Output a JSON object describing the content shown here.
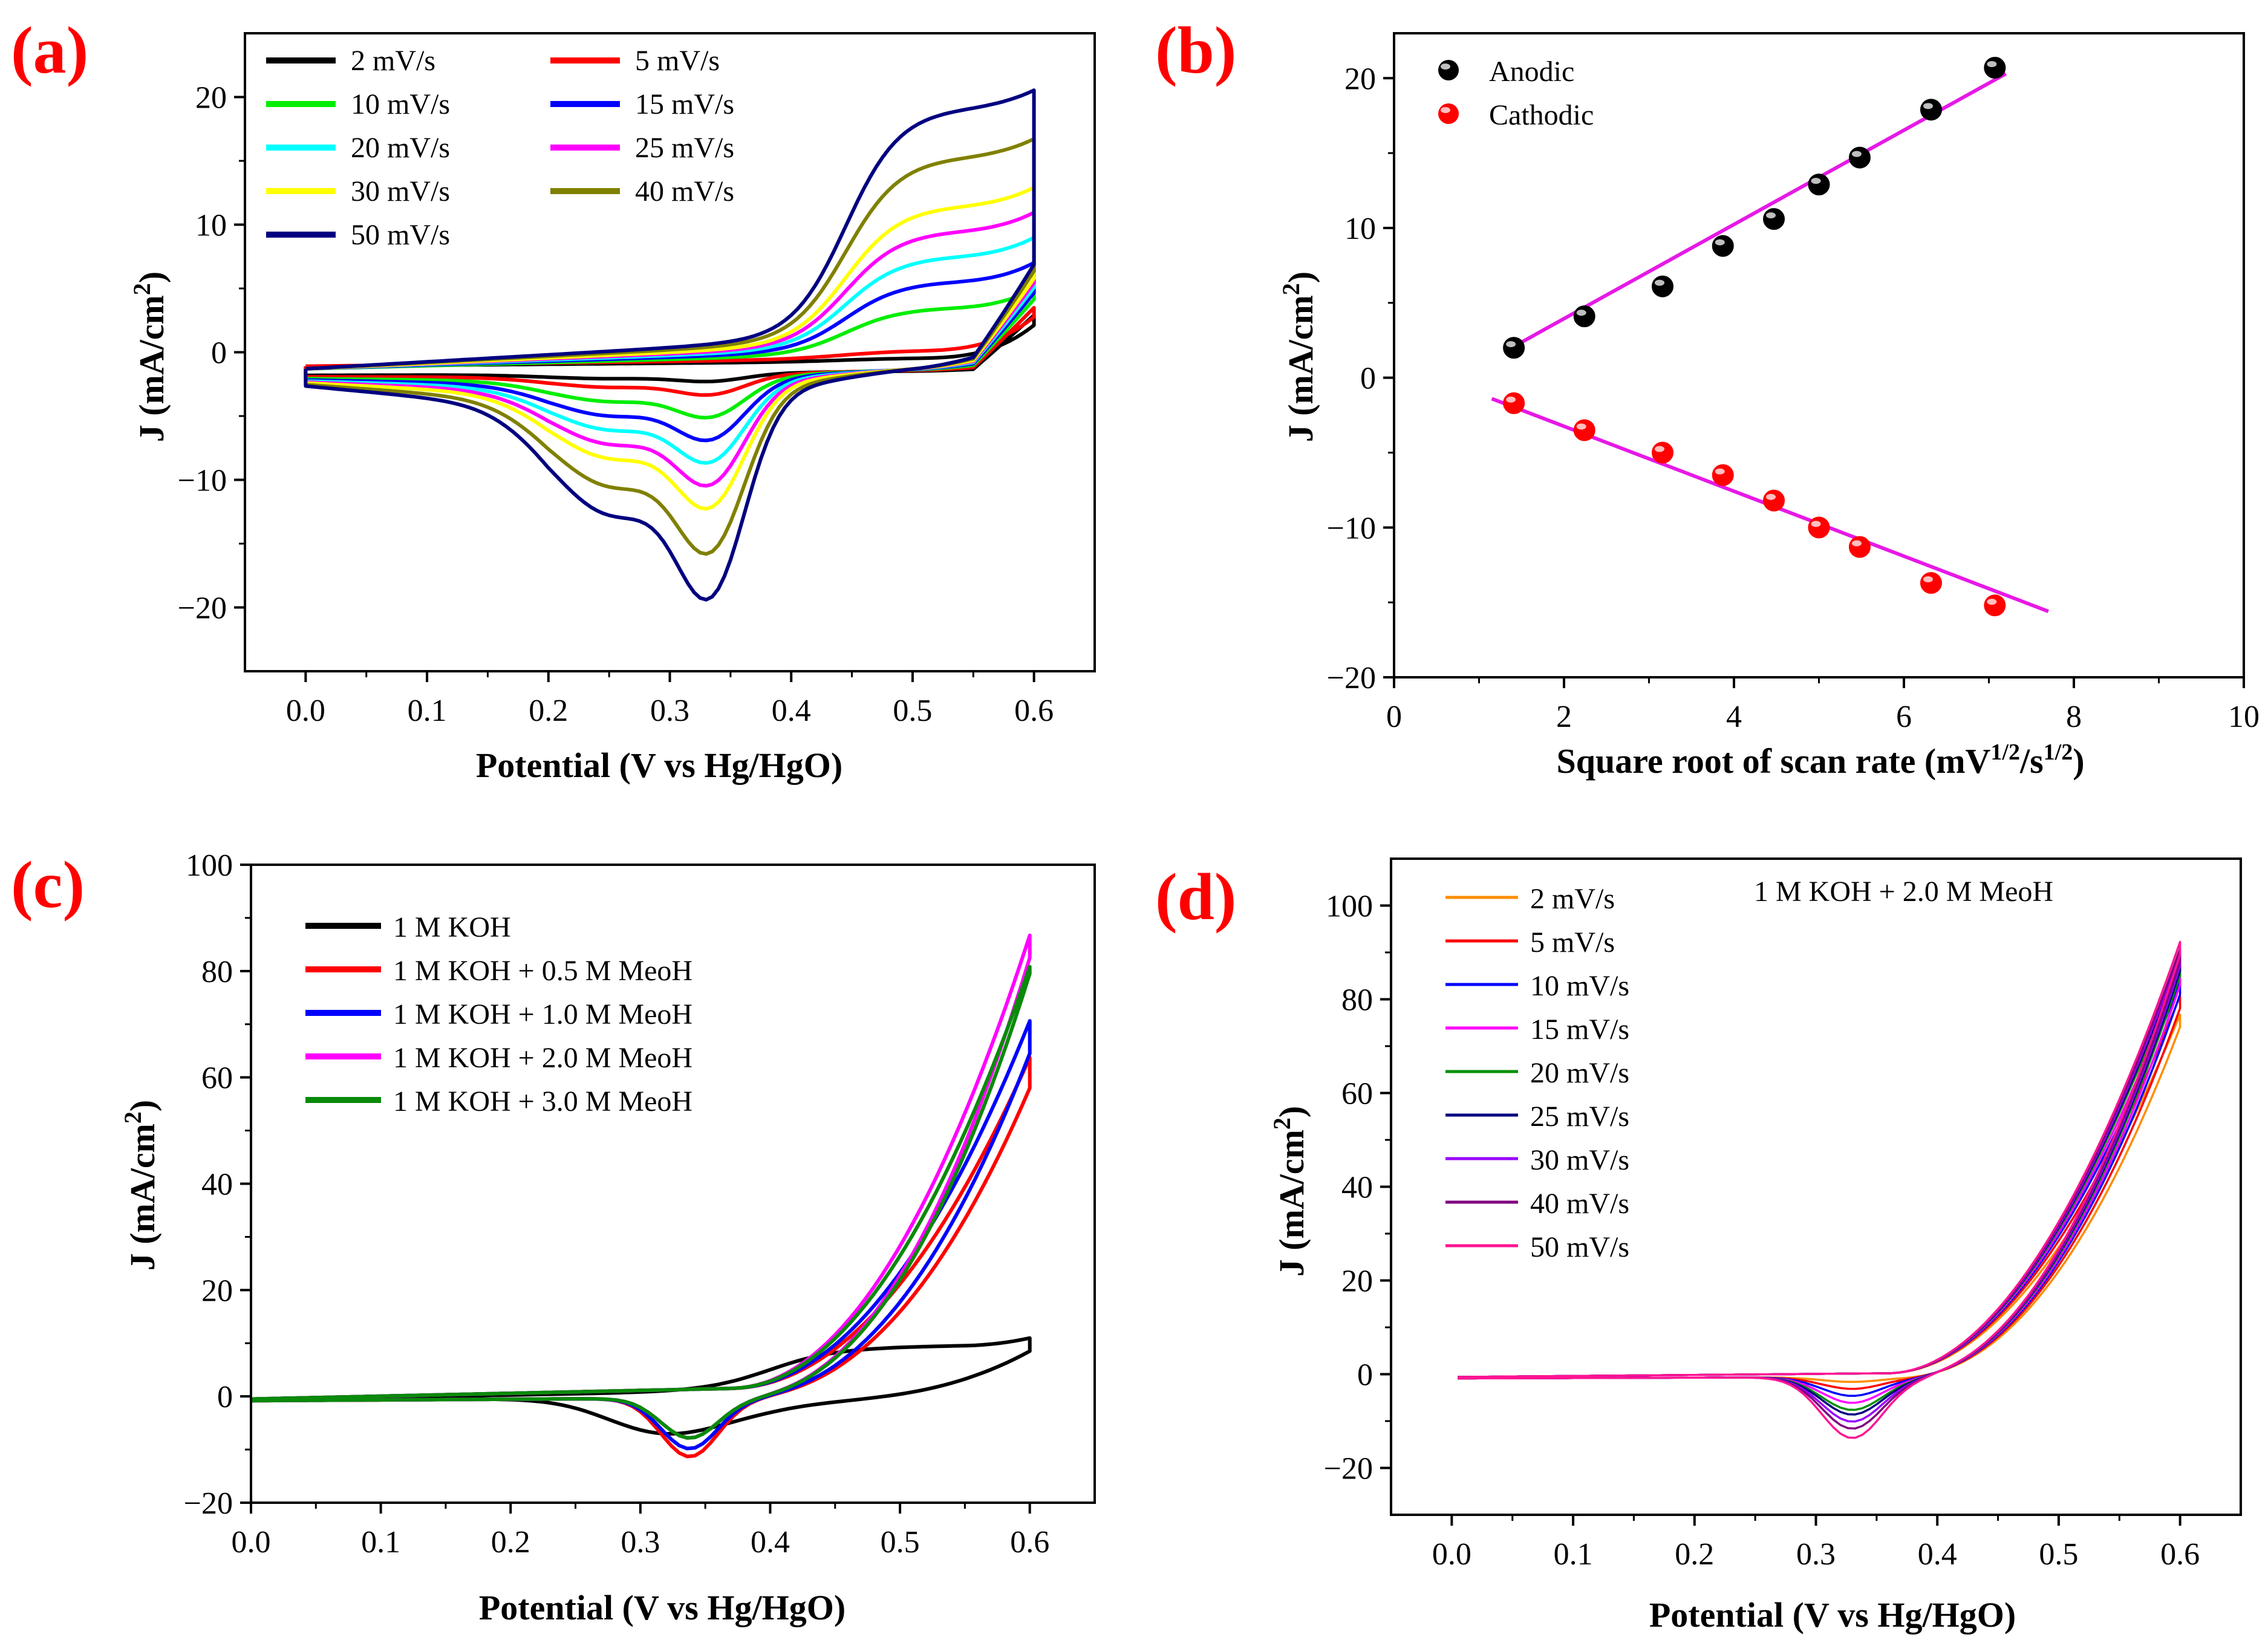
{
  "chart_data": [
    {
      "id": "a",
      "panel_label": "(a)",
      "type": "line",
      "xlabel": "Potential (V vs Hg/HgO)",
      "ylabel_main": "J (mA/cm",
      "ylabel_sup": "2",
      "ylabel_close": ")",
      "xlim": [
        -0.05,
        0.65
      ],
      "ylim": [
        -25,
        25
      ],
      "xticks": [
        0.0,
        0.1,
        0.2,
        0.3,
        0.4,
        0.5,
        0.6
      ],
      "xtick_labels": [
        "0.0",
        "0.1",
        "0.2",
        "0.3",
        "0.4",
        "0.5",
        "0.6"
      ],
      "yticks": [
        -20,
        -10,
        0,
        10,
        20
      ],
      "ytick_labels": [
        "−20",
        "−10",
        "0",
        "10",
        "20"
      ],
      "legend_columns": 2,
      "series": [
        {
          "name": "2 mV/s",
          "color": "#000000",
          "k": 0.2
        },
        {
          "name": "5 mV/s",
          "color": "#ff0000",
          "k": 0.316
        },
        {
          "name": "10 mV/s",
          "color": "#00ee00",
          "k": 0.447
        },
        {
          "name": "15 mV/s",
          "color": "#0000ff",
          "k": 0.548
        },
        {
          "name": "20 mV/s",
          "color": "#00ffff",
          "k": 0.632
        },
        {
          "name": "25 mV/s",
          "color": "#ff00ff",
          "k": 0.707
        },
        {
          "name": "30 mV/s",
          "color": "#ffff00",
          "k": 0.775
        },
        {
          "name": "40 mV/s",
          "color": "#808000",
          "k": 0.894
        },
        {
          "name": "50 mV/s",
          "color": "#000080",
          "k": 1.0
        }
      ]
    },
    {
      "id": "b",
      "panel_label": "(b)",
      "type": "scatter",
      "xlabel_main": "Square root of scan rate (mV",
      "xlabel_sup1": "1/2",
      "xlabel_mid": "/s",
      "xlabel_sup2": "1/2",
      "xlabel_close": ")",
      "ylabel_main": "J (mA/cm",
      "ylabel_sup": "2",
      "ylabel_close": ")",
      "xlim": [
        0,
        10
      ],
      "ylim": [
        -20,
        23
      ],
      "xticks": [
        0,
        2,
        4,
        6,
        8,
        10
      ],
      "xtick_labels": [
        "0",
        "2",
        "4",
        "6",
        "8",
        "10"
      ],
      "yticks": [
        -20,
        -10,
        0,
        10,
        20
      ],
      "ytick_labels": [
        "−20",
        "−10",
        "0",
        "10",
        "20"
      ],
      "fit_color": "#e619e6",
      "series": [
        {
          "name": "Anodic",
          "color": "#000000",
          "x": [
            1.41,
            2.24,
            3.16,
            3.87,
            4.47,
            5.0,
            5.48,
            6.32,
            7.07
          ],
          "y": [
            2.0,
            4.1,
            6.1,
            8.8,
            10.6,
            12.9,
            14.7,
            17.9,
            20.7
          ],
          "fit": {
            "x": [
              1.35,
              7.2
            ],
            "y": [
              1.9,
              20.3
            ]
          }
        },
        {
          "name": "Cathodic",
          "color": "#ff0000",
          "x": [
            1.41,
            2.24,
            3.16,
            3.87,
            4.47,
            5.0,
            5.48,
            6.32,
            7.07
          ],
          "y": [
            -1.7,
            -3.5,
            -5.0,
            -6.5,
            -8.2,
            -10.0,
            -11.3,
            -13.7,
            -15.2
          ],
          "fit": {
            "x": [
              1.15,
              7.7
            ],
            "y": [
              -1.4,
              -15.6
            ]
          }
        }
      ]
    },
    {
      "id": "c",
      "panel_label": "(c)",
      "type": "line",
      "xlabel": "Potential (V vs Hg/HgO)",
      "ylabel_main": "J (mA/cm",
      "ylabel_sup": "2",
      "ylabel_close": ")",
      "xlim": [
        0.0,
        0.65
      ],
      "ylim": [
        -20,
        100
      ],
      "xticks": [
        0.0,
        0.1,
        0.2,
        0.3,
        0.4,
        0.5,
        0.6
      ],
      "xtick_labels": [
        "0.0",
        "0.1",
        "0.2",
        "0.3",
        "0.4",
        "0.5",
        "0.6"
      ],
      "yticks": [
        -20,
        0,
        20,
        40,
        60,
        80,
        100
      ],
      "ytick_labels": [
        "−20",
        "0",
        "20",
        "40",
        "60",
        "80",
        "100"
      ],
      "series": [
        {
          "name": "1 M KOH",
          "color": "#000000",
          "end_value": 10.5,
          "valley": -7
        },
        {
          "name": "1 M KOH + 0.5 M MeoH",
          "color": "#ff0000",
          "end_value": 59,
          "valley": -12
        },
        {
          "name": "1 M KOH + 1.0 M MeoH",
          "color": "#0000ff",
          "end_value": 65.5,
          "valley": -10.5
        },
        {
          "name": "1 M KOH + 2.0 M MeoH",
          "color": "#ff00ff",
          "end_value": 83.5,
          "valley": -8.5
        },
        {
          "name": "1 M KOH + 3.0 M MeoH",
          "color": "#0a8a0a",
          "end_value": 80.5,
          "valley": -8.5
        }
      ]
    },
    {
      "id": "d",
      "panel_label": "(d)",
      "type": "line",
      "annotation": "1 M KOH + 2.0 M MeoH",
      "xlabel": "Potential (V vs Hg/HgO)",
      "ylabel_main": "J (mA/cm",
      "ylabel_sup": "2",
      "ylabel_close": ")",
      "xlim": [
        -0.05,
        0.65
      ],
      "ylim": [
        -30,
        110
      ],
      "xticks": [
        0.0,
        0.1,
        0.2,
        0.3,
        0.4,
        0.5,
        0.6
      ],
      "xtick_labels": [
        "0.0",
        "0.1",
        "0.2",
        "0.3",
        "0.4",
        "0.5",
        "0.6"
      ],
      "yticks": [
        -20,
        0,
        20,
        40,
        60,
        80,
        100
      ],
      "ytick_labels": [
        "−20",
        "0",
        "20",
        "40",
        "60",
        "80",
        "100"
      ],
      "series": [
        {
          "name": "2 mV/s",
          "color": "#ff8c00",
          "end_value": 76,
          "valley": -1
        },
        {
          "name": "5 mV/s",
          "color": "#ff0000",
          "end_value": 80,
          "valley": -2.5
        },
        {
          "name": "10 mV/s",
          "color": "#0000ff",
          "end_value": 83,
          "valley": -4
        },
        {
          "name": "15 mV/s",
          "color": "#ff00ff",
          "end_value": 85,
          "valley": -5.5
        },
        {
          "name": "20 mV/s",
          "color": "#009000",
          "end_value": 87,
          "valley": -7
        },
        {
          "name": "25 mV/s",
          "color": "#000080",
          "end_value": 88,
          "valley": -8
        },
        {
          "name": "30 mV/s",
          "color": "#9900ff",
          "end_value": 89,
          "valley": -9.5
        },
        {
          "name": "40 mV/s",
          "color": "#800080",
          "end_value": 90,
          "valley": -11
        },
        {
          "name": "50 mV/s",
          "color": "#ff1493",
          "end_value": 91.5,
          "valley": -13
        }
      ]
    }
  ]
}
